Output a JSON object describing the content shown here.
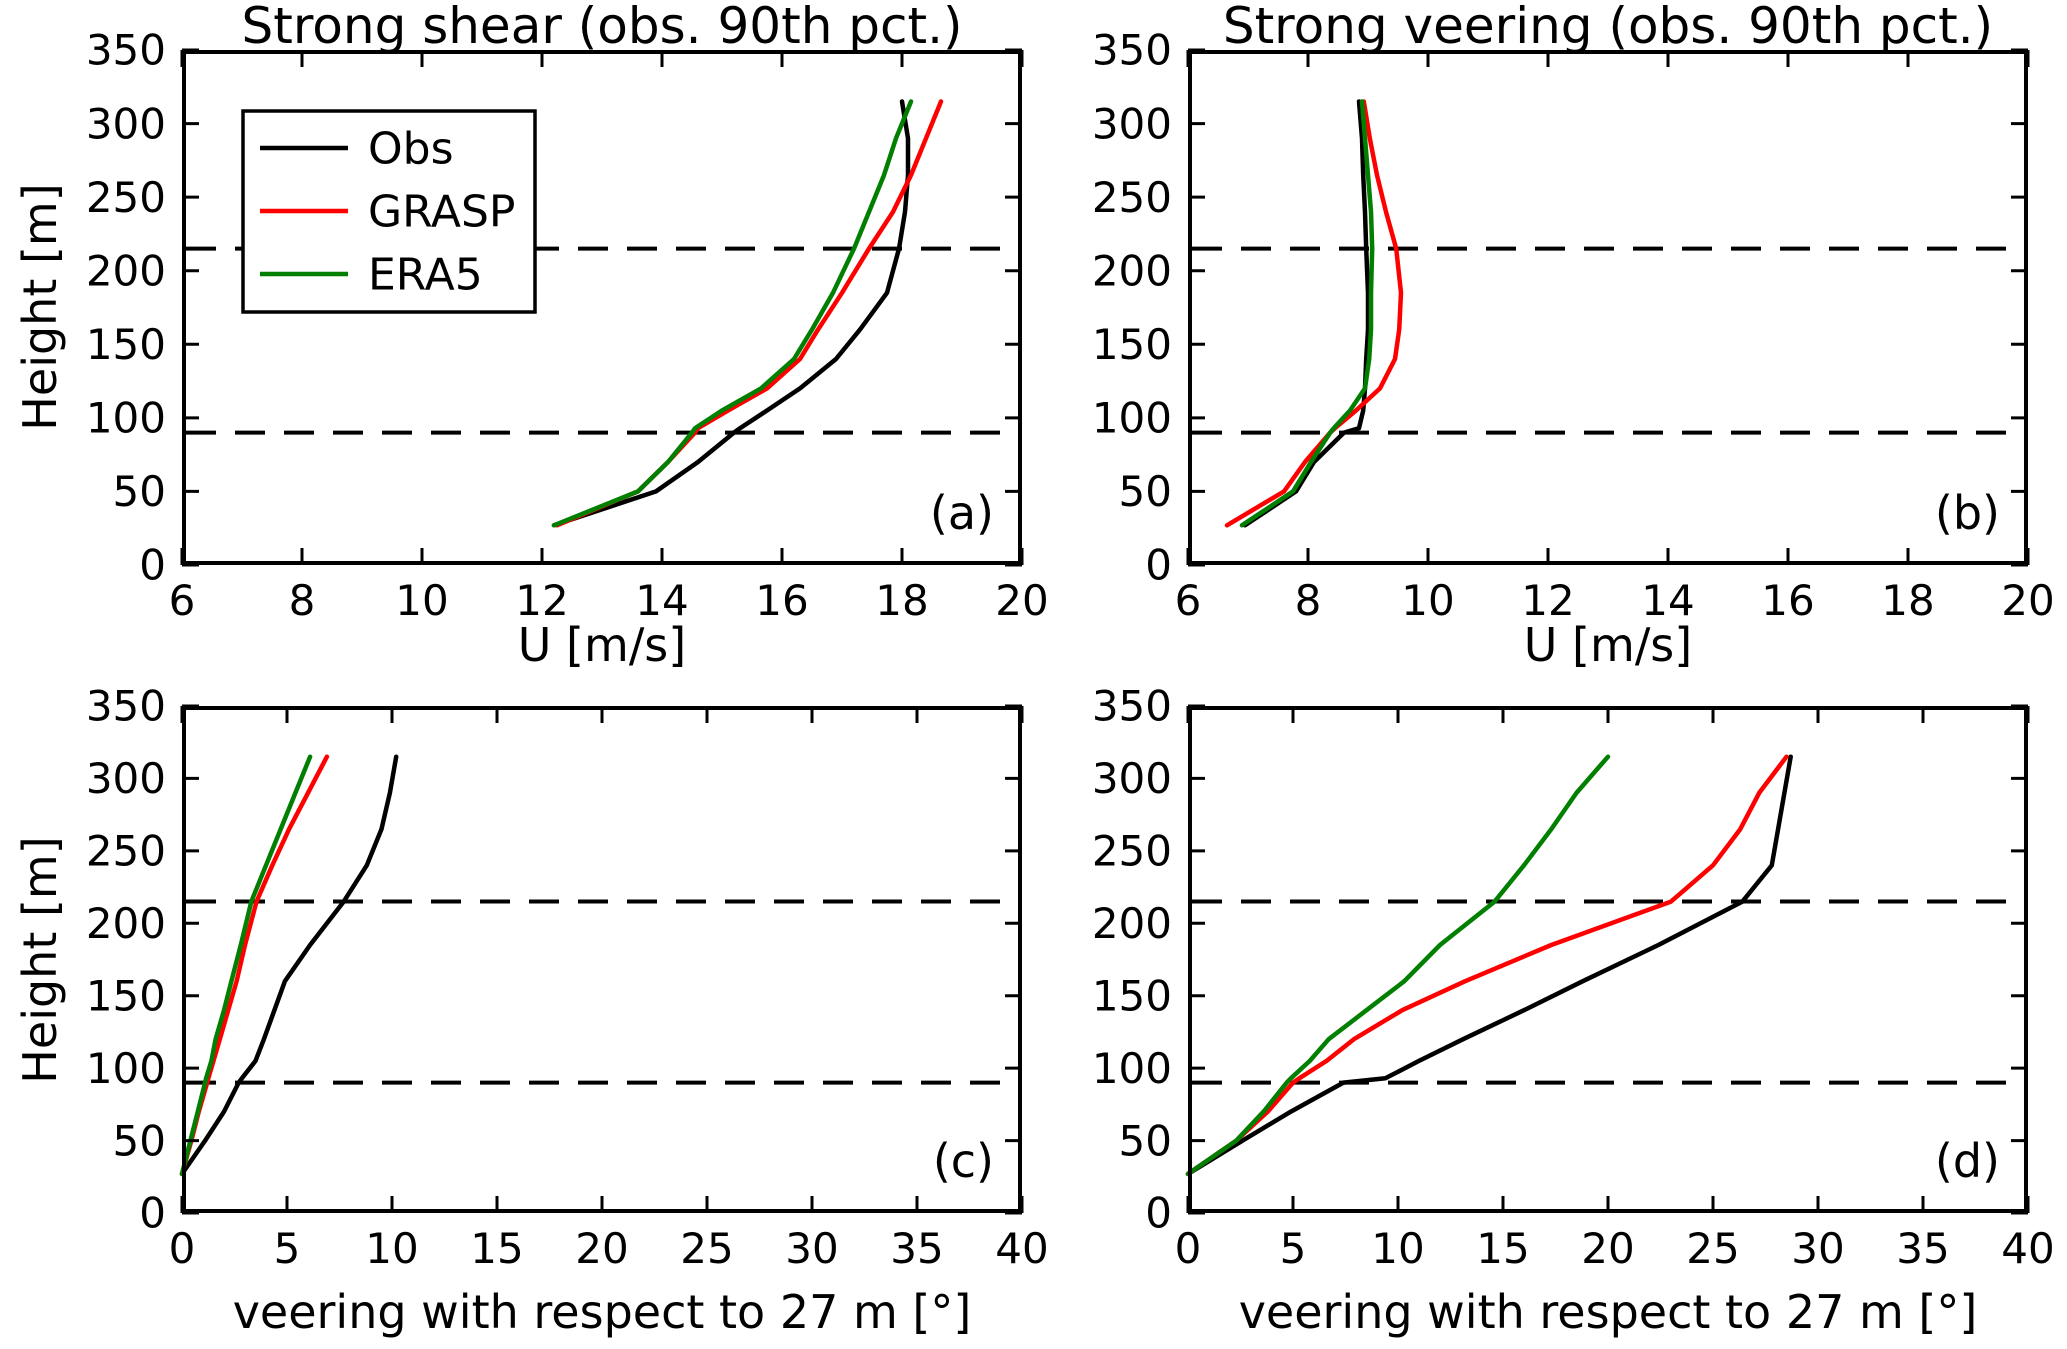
{
  "figure": {
    "background": "#ffffff",
    "line_colors": {
      "obs": "#000000",
      "grasp": "#ff0000",
      "era5": "#007f00"
    },
    "dashed_line_color": "#000000"
  },
  "legend": {
    "border_color": "#000000",
    "entries": [
      {
        "label": "Obs",
        "color": "#000000"
      },
      {
        "label": "GRASP",
        "color": "#ff0000"
      },
      {
        "label": "ERA5",
        "color": "#007f00"
      }
    ]
  },
  "chart_data": [
    {
      "id": "a",
      "type": "line",
      "title": "Strong shear (obs. 90th pct.)",
      "xlabel": "U [m/s]",
      "ylabel": "Height [m]",
      "panel_label": "(a)",
      "xlim": [
        6,
        20
      ],
      "xticks": [
        6,
        8,
        10,
        12,
        14,
        16,
        18,
        20
      ],
      "ylim": [
        0,
        350
      ],
      "yticks": [
        0,
        50,
        100,
        150,
        200,
        250,
        300,
        350
      ],
      "dashed_hlines": [
        90,
        215
      ],
      "grid": "off",
      "legend_position": "upper-left",
      "has_legend": true,
      "heights": [
        27,
        50,
        70,
        90,
        93,
        105,
        120,
        140,
        160,
        185,
        215,
        240,
        265,
        290,
        315
      ],
      "series": [
        {
          "name": "Obs",
          "color": "#000000",
          "values": [
            12.2,
            13.9,
            14.6,
            15.2,
            15.3,
            15.75,
            16.3,
            16.9,
            17.3,
            17.75,
            17.95,
            18.05,
            18.1,
            18.1,
            18.0
          ]
        },
        {
          "name": "GRASP",
          "color": "#ff0000",
          "values": [
            12.25,
            13.6,
            14.1,
            14.55,
            14.6,
            15.1,
            15.75,
            16.3,
            16.6,
            17.0,
            17.45,
            17.85,
            18.15,
            18.4,
            18.65
          ]
        },
        {
          "name": "ERA5",
          "color": "#007f00",
          "values": [
            12.2,
            13.6,
            14.1,
            14.5,
            14.55,
            15.0,
            15.65,
            16.2,
            16.5,
            16.85,
            17.2,
            17.45,
            17.7,
            17.9,
            18.15
          ]
        }
      ]
    },
    {
      "id": "b",
      "type": "line",
      "title": "Strong veering (obs. 90th pct.)",
      "xlabel": "U [m/s]",
      "ylabel": "",
      "panel_label": "(b)",
      "xlim": [
        6,
        20
      ],
      "xticks": [
        6,
        8,
        10,
        12,
        14,
        16,
        18,
        20
      ],
      "ylim": [
        0,
        350
      ],
      "yticks": [
        0,
        50,
        100,
        150,
        200,
        250,
        300,
        350
      ],
      "dashed_hlines": [
        90,
        215
      ],
      "grid": "off",
      "has_legend": false,
      "heights": [
        27,
        50,
        70,
        90,
        93,
        105,
        120,
        140,
        160,
        185,
        215,
        240,
        265,
        290,
        315
      ],
      "series": [
        {
          "name": "Obs",
          "color": "#000000",
          "values": [
            6.95,
            7.8,
            8.1,
            8.6,
            8.85,
            8.92,
            8.95,
            8.97,
            9.0,
            9.0,
            8.97,
            8.95,
            8.92,
            8.9,
            8.85
          ]
        },
        {
          "name": "GRASP",
          "color": "#ff0000",
          "values": [
            6.65,
            7.6,
            7.95,
            8.37,
            8.45,
            8.8,
            9.2,
            9.45,
            9.52,
            9.55,
            9.47,
            9.3,
            9.15,
            9.03,
            8.93
          ]
        },
        {
          "name": "ERA5",
          "color": "#007f00",
          "values": [
            6.9,
            7.75,
            8.05,
            8.37,
            8.43,
            8.7,
            8.95,
            9.02,
            9.05,
            9.05,
            9.07,
            9.05,
            9.0,
            8.95,
            8.9
          ]
        }
      ]
    },
    {
      "id": "c",
      "type": "line",
      "title": "",
      "xlabel": "veering with respect to 27 m [°]",
      "ylabel": "Height [m]",
      "panel_label": "(c)",
      "xlim": [
        0,
        40
      ],
      "xticks": [
        0,
        5,
        10,
        15,
        20,
        25,
        30,
        35,
        40
      ],
      "ylim": [
        0,
        350
      ],
      "yticks": [
        0,
        50,
        100,
        150,
        200,
        250,
        300,
        350
      ],
      "dashed_hlines": [
        90,
        215
      ],
      "grid": "off",
      "has_legend": false,
      "heights": [
        27,
        50,
        70,
        90,
        93,
        105,
        120,
        140,
        160,
        185,
        215,
        240,
        265,
        290,
        315
      ],
      "series": [
        {
          "name": "Obs",
          "color": "#000000",
          "values": [
            0,
            1.1,
            2.0,
            2.7,
            2.85,
            3.5,
            3.9,
            4.4,
            4.9,
            6.1,
            7.7,
            8.8,
            9.5,
            9.9,
            10.2
          ]
        },
        {
          "name": "GRASP",
          "color": "#ff0000",
          "values": [
            0,
            0.45,
            0.8,
            1.2,
            1.25,
            1.5,
            1.8,
            2.2,
            2.6,
            3.0,
            3.55,
            4.3,
            5.1,
            6.0,
            6.9
          ]
        },
        {
          "name": "ERA5",
          "color": "#007f00",
          "values": [
            0,
            0.4,
            0.75,
            1.1,
            1.15,
            1.4,
            1.6,
            2.0,
            2.35,
            2.8,
            3.3,
            4.0,
            4.7,
            5.4,
            6.1
          ]
        }
      ]
    },
    {
      "id": "d",
      "type": "line",
      "title": "",
      "xlabel": "veering with respect to 27 m [°]",
      "ylabel": "",
      "panel_label": "(d)",
      "xlim": [
        0,
        40
      ],
      "xticks": [
        0,
        5,
        10,
        15,
        20,
        25,
        30,
        35,
        40
      ],
      "ylim": [
        0,
        350
      ],
      "yticks": [
        0,
        50,
        100,
        150,
        200,
        250,
        300,
        350
      ],
      "dashed_hlines": [
        90,
        215
      ],
      "grid": "off",
      "has_legend": false,
      "heights": [
        27,
        50,
        70,
        90,
        93,
        105,
        120,
        140,
        160,
        185,
        215,
        240,
        265,
        290,
        315
      ],
      "series": [
        {
          "name": "Obs",
          "color": "#000000",
          "values": [
            0,
            2.6,
            4.9,
            7.4,
            9.4,
            11.0,
            13.1,
            16.0,
            18.8,
            22.4,
            26.4,
            27.8,
            28.1,
            28.4,
            28.7
          ]
        },
        {
          "name": "GRASP",
          "color": "#ff0000",
          "values": [
            0,
            2.3,
            3.8,
            5.0,
            5.3,
            6.6,
            7.9,
            10.2,
            13.2,
            17.3,
            23.0,
            25.0,
            26.3,
            27.2,
            28.5
          ]
        },
        {
          "name": "ERA5",
          "color": "#007f00",
          "values": [
            0,
            2.3,
            3.6,
            4.7,
            4.9,
            5.8,
            6.7,
            8.5,
            10.3,
            12.0,
            14.6,
            16.0,
            17.3,
            18.5,
            20.0
          ]
        }
      ]
    }
  ]
}
